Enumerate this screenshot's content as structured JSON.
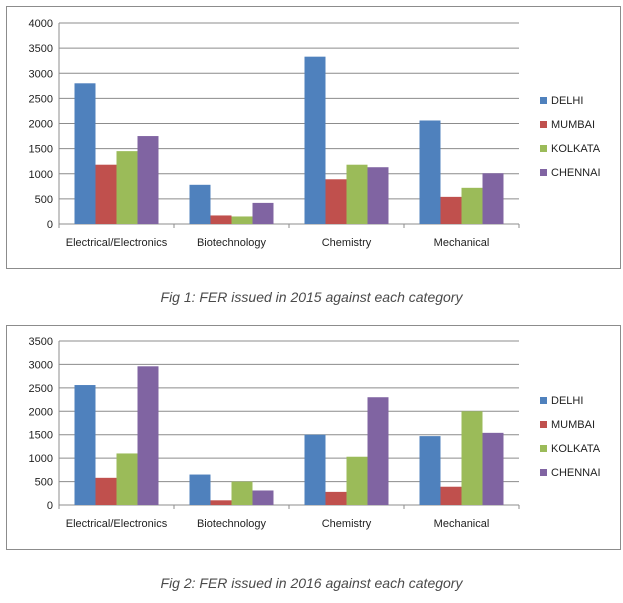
{
  "colors": {
    "DELHI": "#4f81bd",
    "MUMBAI": "#c0504d",
    "KOLKATA": "#9bbb59",
    "CHENNAI": "#8064a2"
  },
  "captions": [
    "Fig 1: FER issued in 2015 against each category",
    "Fig 2: FER issued in 2016 against each category"
  ],
  "chart_data": [
    {
      "type": "bar",
      "title": "",
      "xlabel": "",
      "ylabel": "",
      "categories": [
        "Electrical/Electronics",
        "Biotechnology",
        "Chemistry",
        "Mechanical"
      ],
      "ylim": [
        0,
        4000
      ],
      "yticks": [
        0,
        500,
        1000,
        1500,
        2000,
        2500,
        3000,
        3500,
        4000
      ],
      "grid": true,
      "legend": "right",
      "series": [
        {
          "name": "DELHI",
          "values": [
            2800,
            780,
            3330,
            2060
          ]
        },
        {
          "name": "MUMBAI",
          "values": [
            1180,
            170,
            890,
            540
          ]
        },
        {
          "name": "KOLKATA",
          "values": [
            1450,
            150,
            1180,
            720
          ]
        },
        {
          "name": "CHENNAI",
          "values": [
            1750,
            420,
            1130,
            1010
          ]
        }
      ]
    },
    {
      "type": "bar",
      "title": "",
      "xlabel": "",
      "ylabel": "",
      "categories": [
        "Electrical/Electronics",
        "Biotechnology",
        "Chemistry",
        "Mechanical"
      ],
      "ylim": [
        0,
        3500
      ],
      "yticks": [
        0,
        500,
        1000,
        1500,
        2000,
        2500,
        3000,
        3500
      ],
      "grid": true,
      "legend": "right",
      "series": [
        {
          "name": "DELHI",
          "values": [
            2560,
            650,
            1500,
            1470
          ]
        },
        {
          "name": "MUMBAI",
          "values": [
            580,
            100,
            280,
            390
          ]
        },
        {
          "name": "KOLKATA",
          "values": [
            1100,
            500,
            1030,
            2000
          ]
        },
        {
          "name": "CHENNAI",
          "values": [
            2960,
            310,
            2300,
            1540
          ]
        }
      ]
    }
  ]
}
